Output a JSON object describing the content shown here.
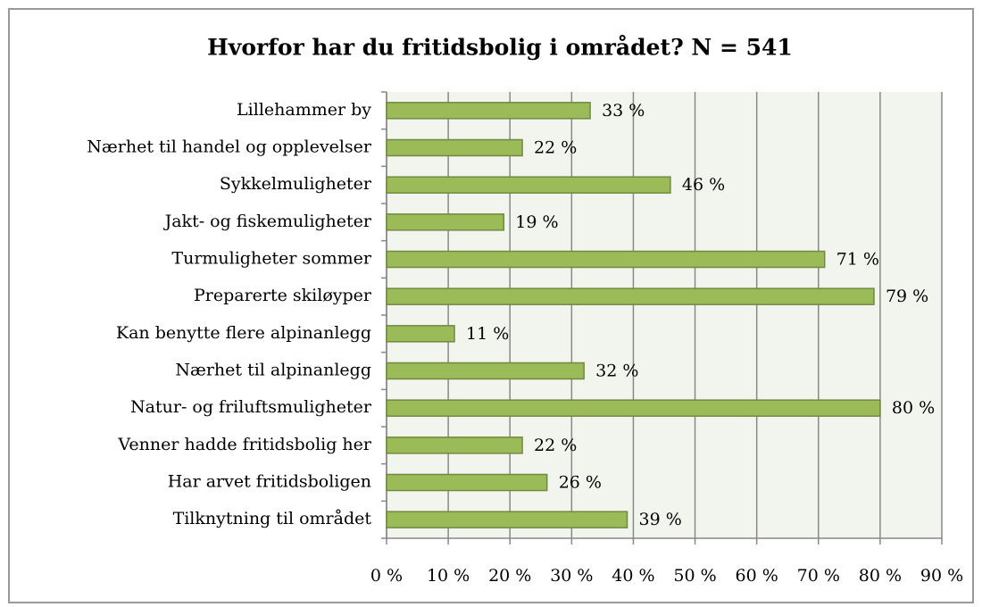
{
  "chart_data": {
    "type": "bar",
    "orientation": "horizontal",
    "title": "Hvorfor har du fritidsbolig i området? N = 541",
    "categories": [
      "Lillehammer by",
      "Nærhet til handel og opplevelser",
      "Sykkelmuligheter",
      "Jakt- og fiskemuligheter",
      "Turmuligheter sommer",
      "Preparerte skiløyper",
      "Kan benytte flere alpinanlegg",
      "Nærhet til alpinanlegg",
      "Natur- og friluftsmuligheter",
      "Venner hadde fritidsbolig her",
      "Har arvet fritidsboligen",
      "Tilknytning til området"
    ],
    "values": [
      33,
      22,
      46,
      19,
      71,
      79,
      11,
      32,
      80,
      22,
      26,
      39
    ],
    "value_labels": [
      "33 %",
      "22 %",
      "46 %",
      "19 %",
      "71 %",
      "79 %",
      "11 %",
      "32 %",
      "80 %",
      "22 %",
      "26 %",
      "39 %"
    ],
    "color": "#9bbb59",
    "xlim": [
      0,
      90
    ],
    "xticks": [
      {
        "value": 0,
        "label": "0 %"
      },
      {
        "value": 10,
        "label": "10 %"
      },
      {
        "value": 20,
        "label": "20 %"
      },
      {
        "value": 30,
        "label": "30 %"
      },
      {
        "value": 40,
        "label": "40 %"
      },
      {
        "value": 50,
        "label": "50 %"
      },
      {
        "value": 60,
        "label": "60 %"
      },
      {
        "value": 70,
        "label": "70 %"
      },
      {
        "value": 80,
        "label": "80 %"
      },
      {
        "value": 90,
        "label": "90 %"
      }
    ],
    "grid": true
  }
}
